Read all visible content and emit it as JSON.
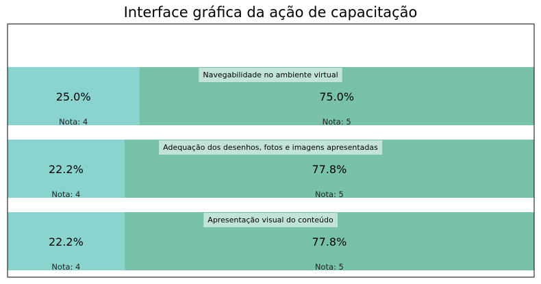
{
  "chart_data": {
    "type": "bar",
    "orientation": "horizontal-stacked-100",
    "title": "Interface gráfica da ação de capacitação",
    "xlim": [
      0,
      100
    ],
    "grid": false,
    "legend": "none",
    "categories": [
      "Navegabilidade no ambiente virtual",
      "Adequação dos desenhos, fotos e imagens apresentadas",
      "Apresentação visual do conteúdo"
    ],
    "series": [
      {
        "name": "Nota: 4",
        "color": "#8ad4cf",
        "values": [
          25.0,
          22.2,
          22.2
        ],
        "labels": [
          "25.0%",
          "22.2%",
          "22.2%"
        ]
      },
      {
        "name": "Nota: 5",
        "color": "#79c2aa",
        "values": [
          75.0,
          77.8,
          77.8
        ],
        "labels": [
          "75.0%",
          "77.8%",
          "77.8%"
        ]
      }
    ]
  }
}
